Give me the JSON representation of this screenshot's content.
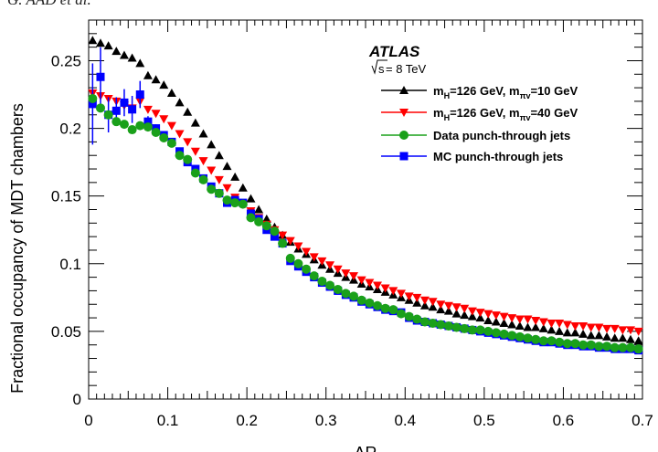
{
  "page_header": "G. AAD et al.",
  "colors": {
    "signal_10": "#000000",
    "signal_40": "#ff0000",
    "data_jets": "#1aa01a",
    "mc_jets": "#0000ff"
  },
  "chart_data": {
    "type": "scatter",
    "title": "",
    "xlabel": "ΔR",
    "ylabel": "Fractional occupancy of MDT chambers",
    "xlim": [
      0,
      0.7
    ],
    "ylim": [
      0,
      0.28
    ],
    "xticks": [
      "0",
      "0.1",
      "0.2",
      "0.3",
      "0.4",
      "0.5",
      "0.6",
      "0.7"
    ],
    "yticks": [
      "0",
      "0.05",
      "0.1",
      "0.15",
      "0.2",
      "0.25"
    ],
    "grid": false,
    "legend_placement": "top-right",
    "experiment": "ATLAS",
    "energy": {
      "root": "s",
      "rest": " = 8 TeV"
    },
    "x": [
      0.005,
      0.015,
      0.025,
      0.035,
      0.045,
      0.055,
      0.065,
      0.075,
      0.085,
      0.095,
      0.105,
      0.115,
      0.125,
      0.135,
      0.145,
      0.155,
      0.165,
      0.175,
      0.185,
      0.195,
      0.205,
      0.215,
      0.225,
      0.235,
      0.245,
      0.255,
      0.265,
      0.275,
      0.285,
      0.295,
      0.305,
      0.315,
      0.325,
      0.335,
      0.345,
      0.355,
      0.365,
      0.375,
      0.385,
      0.395,
      0.405,
      0.415,
      0.425,
      0.435,
      0.445,
      0.455,
      0.465,
      0.475,
      0.485,
      0.495,
      0.505,
      0.515,
      0.525,
      0.535,
      0.545,
      0.555,
      0.565,
      0.575,
      0.585,
      0.595,
      0.605,
      0.615,
      0.625,
      0.635,
      0.645,
      0.655,
      0.665,
      0.675,
      0.685,
      0.695
    ],
    "series": [
      {
        "label_main": "m",
        "label_sub": "H",
        "label_mid": "=126 GeV, m",
        "label_sub2": "πv",
        "label_end": "=10 GeV",
        "marker": "triangle-up",
        "color_key": "signal_10",
        "values": [
          0.265,
          0.263,
          0.261,
          0.257,
          0.254,
          0.252,
          0.248,
          0.239,
          0.236,
          0.232,
          0.226,
          0.219,
          0.212,
          0.204,
          0.196,
          0.188,
          0.18,
          0.172,
          0.164,
          0.156,
          0.148,
          0.14,
          0.133,
          0.127,
          0.121,
          0.116,
          0.111,
          0.107,
          0.103,
          0.099,
          0.096,
          0.093,
          0.09,
          0.088,
          0.085,
          0.083,
          0.081,
          0.079,
          0.077,
          0.075,
          0.073,
          0.071,
          0.069,
          0.068,
          0.066,
          0.065,
          0.063,
          0.062,
          0.061,
          0.06,
          0.058,
          0.057,
          0.056,
          0.055,
          0.054,
          0.053,
          0.053,
          0.052,
          0.051,
          0.05,
          0.049,
          0.049,
          0.048,
          0.047,
          0.047,
          0.046,
          0.045,
          0.045,
          0.044,
          0.043
        ]
      },
      {
        "label_main": "m",
        "label_sub": "H",
        "label_mid": "=126 GeV, m",
        "label_sub2": "πv",
        "label_end": "=40 GeV",
        "marker": "triangle-down",
        "color_key": "signal_40",
        "values": [
          0.226,
          0.224,
          0.222,
          0.22,
          0.217,
          0.215,
          0.22,
          0.214,
          0.211,
          0.207,
          0.202,
          0.196,
          0.19,
          0.183,
          0.176,
          0.169,
          0.162,
          0.156,
          0.149,
          0.144,
          0.139,
          0.134,
          0.129,
          0.125,
          0.121,
          0.117,
          0.113,
          0.109,
          0.105,
          0.102,
          0.099,
          0.096,
          0.093,
          0.091,
          0.088,
          0.086,
          0.084,
          0.082,
          0.08,
          0.078,
          0.076,
          0.075,
          0.073,
          0.072,
          0.07,
          0.069,
          0.068,
          0.067,
          0.065,
          0.064,
          0.063,
          0.062,
          0.061,
          0.06,
          0.059,
          0.059,
          0.058,
          0.057,
          0.056,
          0.056,
          0.055,
          0.054,
          0.054,
          0.053,
          0.053,
          0.052,
          0.052,
          0.051,
          0.051,
          0.05
        ]
      },
      {
        "label": "Data punch-through jets",
        "marker": "circle",
        "color_key": "data_jets",
        "values": [
          0.222,
          0.215,
          0.21,
          0.205,
          0.203,
          0.199,
          0.202,
          0.201,
          0.197,
          0.193,
          0.189,
          0.18,
          0.177,
          0.167,
          0.162,
          0.155,
          0.152,
          0.147,
          0.145,
          0.144,
          0.134,
          0.131,
          0.128,
          0.124,
          0.115,
          0.104,
          0.1,
          0.096,
          0.091,
          0.087,
          0.084,
          0.081,
          0.078,
          0.076,
          0.073,
          0.071,
          0.069,
          0.067,
          0.066,
          0.063,
          0.061,
          0.059,
          0.057,
          0.056,
          0.055,
          0.054,
          0.053,
          0.052,
          0.051,
          0.051,
          0.05,
          0.049,
          0.048,
          0.047,
          0.046,
          0.045,
          0.044,
          0.043,
          0.043,
          0.042,
          0.041,
          0.041,
          0.04,
          0.04,
          0.039,
          0.039,
          0.038,
          0.038,
          0.038,
          0.037
        ]
      },
      {
        "label": "MC punch-through jets",
        "marker": "square",
        "color_key": "mc_jets",
        "values": [
          0.218,
          0.238,
          0.21,
          0.213,
          0.219,
          0.214,
          0.225,
          0.205,
          0.2,
          0.195,
          0.19,
          0.183,
          0.175,
          0.17,
          0.163,
          0.157,
          0.152,
          0.145,
          0.147,
          0.145,
          0.137,
          0.133,
          0.125,
          0.12,
          0.115,
          0.102,
          0.098,
          0.094,
          0.09,
          0.086,
          0.083,
          0.08,
          0.077,
          0.075,
          0.072,
          0.07,
          0.068,
          0.066,
          0.065,
          0.064,
          0.06,
          0.058,
          0.057,
          0.056,
          0.055,
          0.054,
          0.053,
          0.052,
          0.051,
          0.05,
          0.049,
          0.048,
          0.047,
          0.046,
          0.045,
          0.044,
          0.043,
          0.042,
          0.042,
          0.041,
          0.04,
          0.04,
          0.039,
          0.039,
          0.038,
          0.038,
          0.037,
          0.037,
          0.037,
          0.036
        ],
        "errors": [
          0.03,
          0.022,
          0.013,
          0.01,
          0.01,
          0.01,
          0.01,
          0.004,
          0.003,
          0.003,
          0.002,
          0.002,
          0.002,
          0.002,
          0.002,
          0.002,
          0.002,
          0.002,
          0.002,
          0.002,
          0.002,
          0.002,
          0.002,
          0.002,
          0.002,
          0.001,
          0.001,
          0.001,
          0.001,
          0.001,
          0.001,
          0.001,
          0.001,
          0.001,
          0.001,
          0.001,
          0.001,
          0.001,
          0.001,
          0.001,
          0.001,
          0.001,
          0.001,
          0.001,
          0.001,
          0.001,
          0.001,
          0.001,
          0.001,
          0.001,
          0.001,
          0.001,
          0.001,
          0.001,
          0.001,
          0.001,
          0.001,
          0.001,
          0.001,
          0.001,
          0.001,
          0.001,
          0.001,
          0.001,
          0.001,
          0.001,
          0.001,
          0.001,
          0.001,
          0.001
        ]
      }
    ]
  }
}
